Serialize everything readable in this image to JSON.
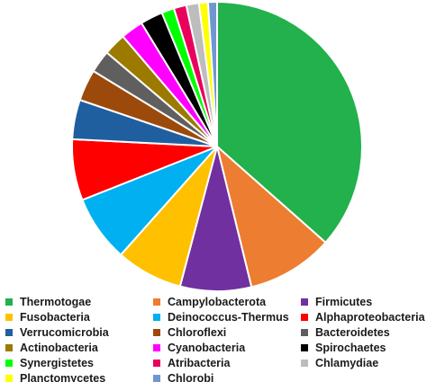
{
  "chart_data": {
    "type": "pie",
    "title": "",
    "legend_position": "bottom",
    "slices": [
      {
        "label": "Thermotogae",
        "value": 36.4,
        "color": "#22b14c"
      },
      {
        "label": "Campylobacterota",
        "value": 9.6,
        "color": "#ed7d31"
      },
      {
        "label": "Firmicutes",
        "value": 7.9,
        "color": "#7030a0"
      },
      {
        "label": "Fusobacteria",
        "value": 7.4,
        "color": "#ffc000"
      },
      {
        "label": "Deinococcus-Thermus",
        "value": 7.4,
        "color": "#00b0f0"
      },
      {
        "label": "Alphaproteobacteria",
        "value": 6.8,
        "color": "#ff0000"
      },
      {
        "label": "Verrucomicrobia",
        "value": 4.4,
        "color": "#1f5fa0"
      },
      {
        "label": "Chloroflexi",
        "value": 3.5,
        "color": "#9c4a0c"
      },
      {
        "label": "Bacteroidetes",
        "value": 2.5,
        "color": "#5f5f5f"
      },
      {
        "label": "Actinobacteria",
        "value": 2.5,
        "color": "#9c7a00"
      },
      {
        "label": "Cyanobacteria",
        "value": 2.5,
        "color": "#ff00ff"
      },
      {
        "label": "Spirochaetes",
        "value": 2.5,
        "color": "#000000"
      },
      {
        "label": "Synergistetes",
        "value": 1.4,
        "color": "#00ff00"
      },
      {
        "label": "Atribacteria",
        "value": 1.4,
        "color": "#e8005c"
      },
      {
        "label": "Chlamydiae",
        "value": 1.4,
        "color": "#bdbdbd"
      },
      {
        "label": "Planctomycetes",
        "value": 1.0,
        "color": "#ffff00"
      },
      {
        "label": "Chlorobi",
        "value": 1.0,
        "color": "#6f97cf"
      }
    ]
  }
}
